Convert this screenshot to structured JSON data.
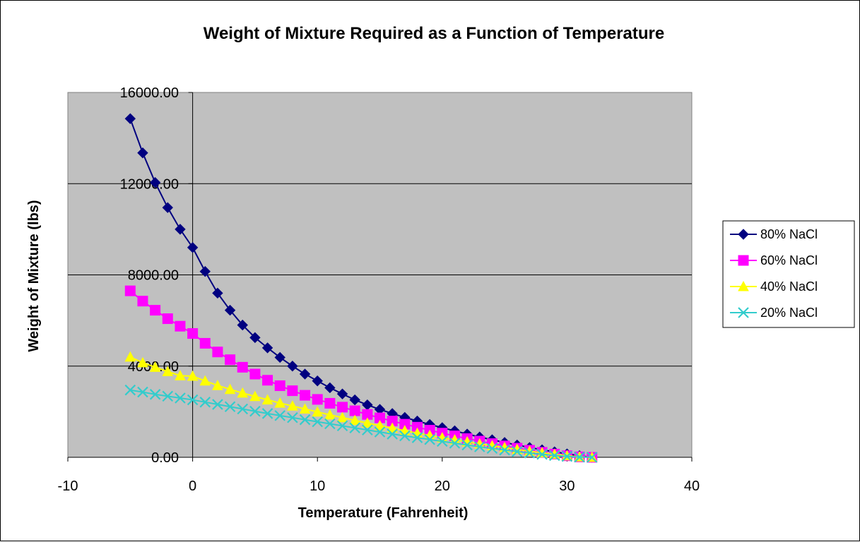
{
  "chart_data": {
    "type": "scatter",
    "title": "Weight of Mixture Required as a Function of Temperature",
    "xlabel": "Temperature (Fahrenheit)",
    "ylabel": "Weight of Mixture (lbs)",
    "xlim": [
      -10,
      40
    ],
    "ylim": [
      0,
      16000
    ],
    "x_ticks": [
      "-10",
      "0",
      "10",
      "20",
      "30",
      "40"
    ],
    "y_ticks": [
      "0.00",
      "4000.00",
      "8000.00",
      "12000.00",
      "16000.00"
    ],
    "grid": "horizontal major gridlines",
    "legend_position": "right",
    "plot_background": "#c0c0c0",
    "x": [
      -5,
      -4,
      -3,
      -2,
      -1,
      0,
      1,
      2,
      3,
      4,
      5,
      6,
      7,
      8,
      9,
      10,
      11,
      12,
      13,
      14,
      15,
      16,
      17,
      18,
      19,
      20,
      21,
      22,
      23,
      24,
      25,
      26,
      27,
      28,
      29,
      30,
      31,
      32
    ],
    "series": [
      {
        "name": "80% NaCl",
        "color": "#000080",
        "marker": "diamond",
        "values": [
          14850,
          13350,
          12050,
          10950,
          10000,
          9200,
          8150,
          7200,
          6450,
          5800,
          5250,
          4800,
          4380,
          4000,
          3650,
          3350,
          3050,
          2780,
          2520,
          2300,
          2100,
          1920,
          1750,
          1590,
          1440,
          1300,
          1160,
          1020,
          890,
          770,
          650,
          540,
          430,
          330,
          240,
          150,
          70,
          0
        ]
      },
      {
        "name": "60% NaCl",
        "color": "#ff00ff",
        "marker": "square",
        "values": [
          7300,
          6850,
          6450,
          6080,
          5750,
          5430,
          5000,
          4620,
          4280,
          3950,
          3650,
          3380,
          3140,
          2920,
          2720,
          2540,
          2370,
          2200,
          2040,
          1880,
          1730,
          1590,
          1450,
          1320,
          1190,
          1060,
          940,
          820,
          710,
          600,
          500,
          400,
          310,
          220,
          140,
          70,
          20,
          0
        ]
      },
      {
        "name": "40% NaCl",
        "color": "#ffff00",
        "marker": "triangle",
        "values": [
          4400,
          4150,
          3950,
          3760,
          3580,
          3560,
          3350,
          3150,
          2980,
          2820,
          2670,
          2520,
          2380,
          2250,
          2120,
          1990,
          1860,
          1740,
          1620,
          1500,
          1390,
          1280,
          1170,
          1060,
          960,
          860,
          770,
          680,
          590,
          510,
          430,
          350,
          270,
          200,
          130,
          70,
          20,
          0
        ]
      },
      {
        "name": "20% NaCl",
        "color": "#33cccc",
        "marker": "x",
        "values": [
          2950,
          2860,
          2760,
          2680,
          2600,
          2520,
          2420,
          2320,
          2220,
          2120,
          2020,
          1920,
          1830,
          1740,
          1650,
          1560,
          1470,
          1380,
          1290,
          1200,
          1110,
          1020,
          940,
          860,
          780,
          700,
          620,
          540,
          460,
          390,
          320,
          250,
          190,
          130,
          80,
          40,
          10,
          0
        ]
      }
    ]
  }
}
